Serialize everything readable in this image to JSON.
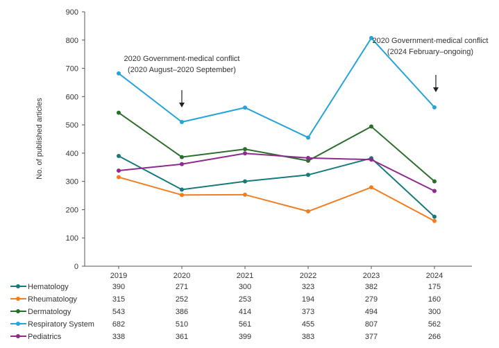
{
  "chart_data": {
    "type": "line",
    "title": "",
    "xlabel": "",
    "ylabel": "No. of published articles",
    "ylim": [
      0,
      900
    ],
    "yticks": [
      "0",
      "100",
      "200",
      "300",
      "400",
      "500",
      "600",
      "700",
      "800",
      "900"
    ],
    "categories": [
      "2019",
      "2020",
      "2021",
      "2022",
      "2023",
      "2024"
    ],
    "series": [
      {
        "name": "Hematology",
        "color": "#167a7a",
        "values": [
          390,
          271,
          300,
          323,
          382,
          175
        ]
      },
      {
        "name": "Rheumatology",
        "color": "#f47c20",
        "values": [
          315,
          252,
          253,
          194,
          279,
          160
        ]
      },
      {
        "name": "Dermatology",
        "color": "#2b6e2b",
        "values": [
          543,
          386,
          414,
          373,
          494,
          300
        ]
      },
      {
        "name": "Respiratory System",
        "color": "#27a3d9",
        "values": [
          682,
          510,
          561,
          455,
          807,
          562
        ]
      },
      {
        "name": "Pediatrics",
        "color": "#8e2a8e",
        "values": [
          338,
          361,
          399,
          383,
          377,
          266
        ]
      }
    ],
    "annotations": [
      {
        "line1": "2020 Government-medical conflict",
        "line2": "(2020 August–2020 September)",
        "at": "2020"
      },
      {
        "line1": "2020 Government-medical conflict",
        "line2": "(2024 February–ongoing)",
        "at": "2024"
      }
    ],
    "grid": false,
    "legend": "bottom-table"
  }
}
